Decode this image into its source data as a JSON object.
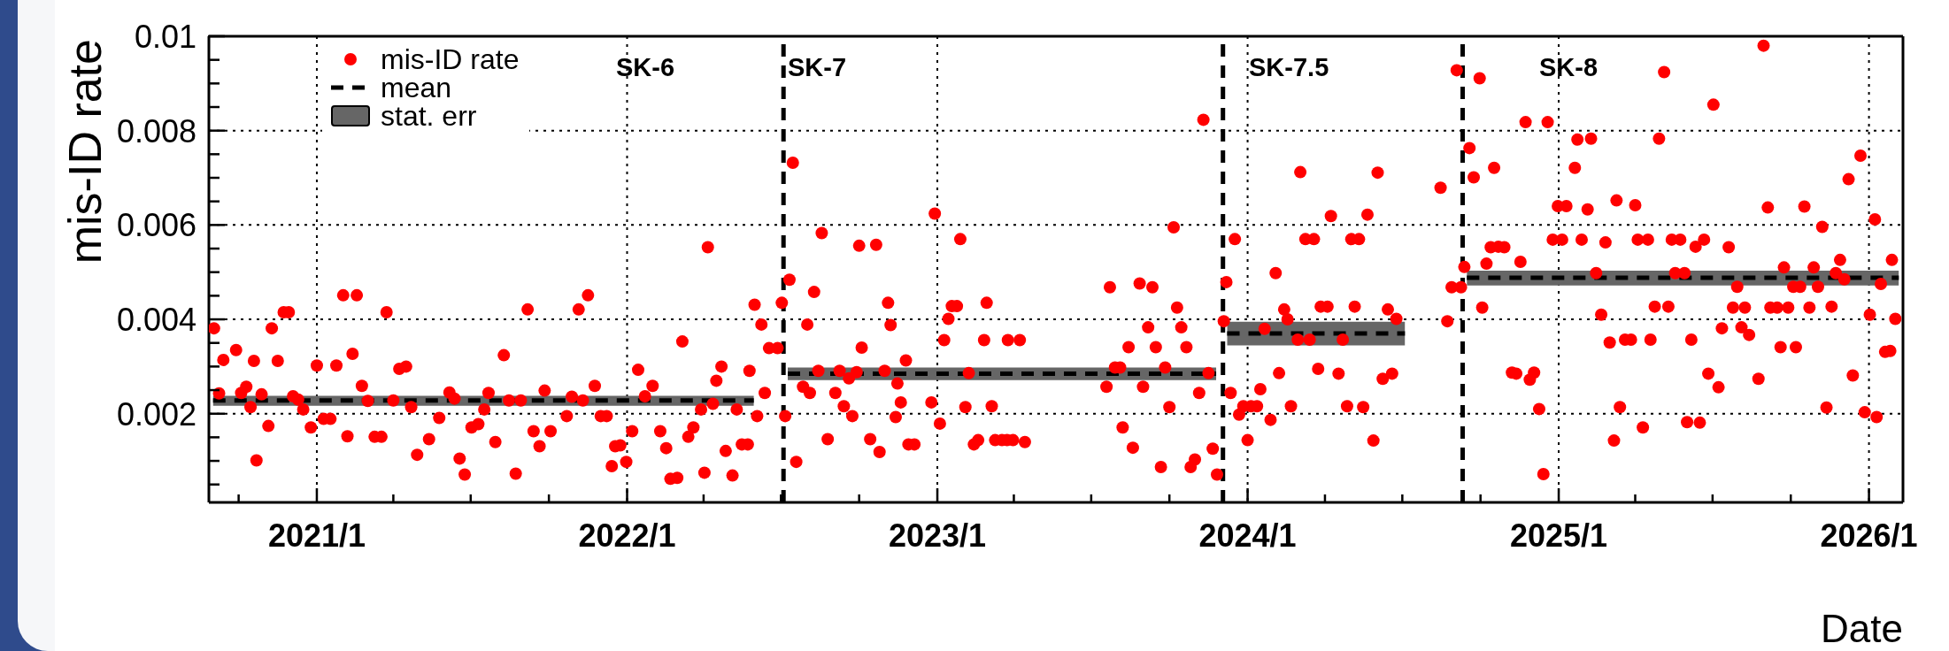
{
  "chart_data": {
    "type": "scatter",
    "xlabel": "Date",
    "ylabel": "mis-ID rate",
    "xlim": [
      "2020-08-27",
      "2026-02-10"
    ],
    "xticks": [
      {
        "value": "2020-10-01",
        "label": null
      },
      {
        "value": "2021-01-01",
        "label": "2021/1"
      },
      {
        "value": "2021-04-01",
        "label": null
      },
      {
        "value": "2021-07-01",
        "label": null
      },
      {
        "value": "2021-10-01",
        "label": null
      },
      {
        "value": "2022-01-01",
        "label": "2022/1"
      },
      {
        "value": "2022-04-01",
        "label": null
      },
      {
        "value": "2022-07-01",
        "label": null
      },
      {
        "value": "2022-10-01",
        "label": null
      },
      {
        "value": "2023-01-01",
        "label": "2023/1"
      },
      {
        "value": "2023-04-01",
        "label": null
      },
      {
        "value": "2023-07-01",
        "label": null
      },
      {
        "value": "2023-10-01",
        "label": null
      },
      {
        "value": "2024-01-01",
        "label": "2024/1"
      },
      {
        "value": "2024-04-01",
        "label": null
      },
      {
        "value": "2024-07-01",
        "label": null
      },
      {
        "value": "2024-10-01",
        "label": null
      },
      {
        "value": "2025-01-01",
        "label": "2025/1"
      },
      {
        "value": "2025-04-01",
        "label": null
      },
      {
        "value": "2025-07-01",
        "label": null
      },
      {
        "value": "2025-10-01",
        "label": null
      },
      {
        "value": "2026-01-01",
        "label": "2026/1"
      }
    ],
    "ylim": [
      0.00012,
      0.01
    ],
    "yticks": [
      {
        "value": 0.0005,
        "label": null
      },
      {
        "value": 0.001,
        "label": null
      },
      {
        "value": 0.0015,
        "label": null
      },
      0.002,
      {
        "value": 0.0025,
        "label": null
      },
      {
        "value": 0.003,
        "label": null
      },
      {
        "value": 0.0035,
        "label": null
      },
      0.004,
      {
        "value": 0.0045,
        "label": null
      },
      {
        "value": 0.005,
        "label": null
      },
      {
        "value": 0.0055,
        "label": null
      },
      0.006,
      {
        "value": 0.0065,
        "label": null
      },
      {
        "value": 0.007,
        "label": null
      },
      {
        "value": 0.0075,
        "label": null
      },
      0.008,
      {
        "value": 0.0085,
        "label": null
      },
      {
        "value": 0.009,
        "label": null
      },
      {
        "value": 0.0095,
        "label": null
      },
      0.01
    ],
    "grid": true,
    "legend": "top left",
    "series": [
      {
        "name": "mis-ID rate",
        "color": "#ff0000",
        "marker": "circle",
        "x": [
          "2020-09-02",
          "2020-09-08",
          "2020-09-13",
          "2020-09-28",
          "2020-10-04",
          "2020-10-10",
          "2020-10-15",
          "2020-10-19",
          "2020-10-22",
          "2020-10-28",
          "2020-11-05",
          "2020-11-09",
          "2020-11-16",
          "2020-11-23",
          "2020-11-29",
          "2020-12-04",
          "2020-12-10",
          "2020-12-16",
          "2020-12-25",
          "2021-01-01",
          "2021-01-09",
          "2021-01-17",
          "2021-01-24",
          "2021-02-01",
          "2021-02-06",
          "2021-02-12",
          "2021-02-17",
          "2021-02-23",
          "2021-03-02",
          "2021-03-10",
          "2021-03-18",
          "2021-03-24",
          "2021-04-01",
          "2021-04-08",
          "2021-04-16",
          "2021-04-22",
          "2021-04-29",
          "2021-05-13",
          "2021-05-25",
          "2021-06-06",
          "2021-06-12",
          "2021-06-18",
          "2021-06-24",
          "2021-07-02",
          "2021-07-10",
          "2021-07-17",
          "2021-07-22",
          "2021-07-30",
          "2021-08-09",
          "2021-08-15",
          "2021-08-23",
          "2021-08-29",
          "2021-09-06",
          "2021-09-13",
          "2021-09-20",
          "2021-09-26",
          "2021-10-03",
          "2021-10-22",
          "2021-10-28",
          "2021-11-05",
          "2021-11-10",
          "2021-11-16",
          "2021-11-24",
          "2021-12-01",
          "2021-12-08",
          "2021-12-14",
          "2021-12-18",
          "2021-12-24",
          "2021-12-31",
          "2022-01-07",
          "2022-01-14",
          "2022-01-22",
          "2022-01-31",
          "2022-02-09",
          "2022-02-16",
          "2022-02-21",
          "2022-03-01",
          "2022-03-07",
          "2022-03-14",
          "2022-03-20",
          "2022-03-29",
          "2022-04-02",
          "2022-04-06",
          "2022-04-12",
          "2022-04-16",
          "2022-04-22",
          "2022-04-27",
          "2022-05-05",
          "2022-05-10",
          "2022-05-16",
          "2022-05-23",
          "2022-05-25",
          "2022-05-31",
          "2022-06-03",
          "2022-06-08",
          "2022-06-12",
          "2022-06-17",
          "2022-06-27",
          "2022-07-02",
          "2022-07-06",
          "2022-07-11",
          "2022-07-15",
          "2022-07-19",
          "2022-07-27",
          "2022-08-01",
          "2022-08-04",
          "2022-08-09",
          "2022-08-14",
          "2022-08-18",
          "2022-08-25",
          "2022-09-03",
          "2022-09-08",
          "2022-09-13",
          "2022-09-19",
          "2022-09-23",
          "2022-09-28",
          "2022-10-01",
          "2022-10-04",
          "2022-10-14",
          "2022-10-21",
          "2022-10-25",
          "2022-10-31",
          "2022-11-04",
          "2022-11-07",
          "2022-11-13",
          "2022-11-15",
          "2022-11-19",
          "2022-11-25",
          "2022-11-28",
          "2022-12-05",
          "2022-12-25",
          "2022-12-29",
          "2023-01-04",
          "2023-01-09",
          "2023-01-14",
          "2023-01-18",
          "2023-01-24",
          "2023-01-28",
          "2023-02-03",
          "2023-02-07",
          "2023-02-13",
          "2023-02-18",
          "2023-02-25",
          "2023-02-28",
          "2023-03-06",
          "2023-03-10",
          "2023-03-18",
          "2023-03-24",
          "2023-03-25",
          "2023-03-31",
          "2023-04-08",
          "2023-04-14",
          "2023-07-19",
          "2023-07-23",
          "2023-07-29",
          "2023-08-04",
          "2023-08-07",
          "2023-08-14",
          "2023-08-19",
          "2023-08-27",
          "2023-08-31",
          "2023-09-06",
          "2023-09-11",
          "2023-09-15",
          "2023-09-21",
          "2023-09-26",
          "2023-10-01",
          "2023-10-06",
          "2023-10-10",
          "2023-10-15",
          "2023-10-21",
          "2023-10-26",
          "2023-10-31",
          "2023-11-05",
          "2023-11-10",
          "2023-11-16",
          "2023-11-21",
          "2023-11-26",
          "2023-12-04",
          "2023-12-07",
          "2023-12-12",
          "2023-12-17",
          "2023-12-22",
          "2023-12-27",
          "2024-01-01",
          "2024-01-05",
          "2024-01-12",
          "2024-01-16",
          "2024-01-21",
          "2024-01-28",
          "2024-02-03",
          "2024-02-07",
          "2024-02-13",
          "2024-02-17",
          "2024-02-21",
          "2024-02-29",
          "2024-03-03",
          "2024-03-09",
          "2024-03-14",
          "2024-03-19",
          "2024-03-24",
          "2024-03-27",
          "2024-04-04",
          "2024-04-08",
          "2024-04-17",
          "2024-04-22",
          "2024-04-27",
          "2024-05-02",
          "2024-05-06",
          "2024-05-11",
          "2024-05-16",
          "2024-05-21",
          "2024-05-28",
          "2024-06-02",
          "2024-06-08",
          "2024-06-14",
          "2024-06-19",
          "2024-06-24",
          "2024-08-15",
          "2024-08-23",
          "2024-08-28",
          "2024-09-03",
          "2024-09-08",
          "2024-09-12",
          "2024-09-18",
          "2024-09-23",
          "2024-09-30",
          "2024-10-03",
          "2024-10-08",
          "2024-10-13",
          "2024-10-17",
          "2024-10-22",
          "2024-10-29",
          "2024-11-07",
          "2024-11-12",
          "2024-11-17",
          "2024-11-23",
          "2024-11-28",
          "2024-12-03",
          "2024-12-09",
          "2024-12-14",
          "2024-12-19",
          "2024-12-25",
          "2024-12-31",
          "2025-01-05",
          "2025-01-10",
          "2025-01-20",
          "2025-01-23",
          "2025-01-28",
          "2025-02-04",
          "2025-02-08",
          "2025-02-14",
          "2025-02-20",
          "2025-02-25",
          "2025-03-02",
          "2025-03-07",
          "2025-03-10",
          "2025-03-14",
          "2025-03-20",
          "2025-03-27",
          "2025-04-01",
          "2025-04-04",
          "2025-04-10",
          "2025-04-16",
          "2025-04-19",
          "2025-04-24",
          "2025-04-29",
          "2025-05-05",
          "2025-05-10",
          "2025-05-14",
          "2025-05-18",
          "2025-05-24",
          "2025-05-29",
          "2025-06-01",
          "2025-06-06",
          "2025-06-11",
          "2025-06-16",
          "2025-06-21",
          "2025-06-26",
          "2025-07-02",
          "2025-07-08",
          "2025-07-12",
          "2025-07-20",
          "2025-07-25",
          "2025-07-30",
          "2025-08-04",
          "2025-08-08",
          "2025-08-13",
          "2025-08-24",
          "2025-08-30",
          "2025-09-04",
          "2025-09-07",
          "2025-09-15",
          "2025-09-19",
          "2025-09-23",
          "2025-09-28",
          "2025-10-04",
          "2025-10-07",
          "2025-10-12",
          "2025-10-17",
          "2025-10-23",
          "2025-10-28",
          "2025-11-02",
          "2025-11-07",
          "2025-11-12",
          "2025-11-18",
          "2025-11-23",
          "2025-11-28",
          "2025-12-03",
          "2025-12-08",
          "2025-12-13",
          "2025-12-22",
          "2025-12-27",
          "2026-01-02",
          "2026-01-08",
          "2026-01-10",
          "2026-01-15",
          "2026-01-20",
          "2026-01-26",
          "2026-01-28",
          "2026-02-01"
        ],
        "values": [
          0.00381,
          0.00243,
          0.00314,
          0.00335,
          0.00244,
          0.00257,
          0.00214,
          0.00312,
          0.00101,
          0.00241,
          0.00174,
          0.00381,
          0.00312,
          0.00415,
          0.00415,
          0.00237,
          0.0023,
          0.00209,
          0.00171,
          0.00302,
          0.00189,
          0.00189,
          0.00302,
          0.00451,
          0.00152,
          0.00327,
          0.00451,
          0.00259,
          0.00227,
          0.00151,
          0.00151,
          0.00415,
          0.00228,
          0.00295,
          0.003,
          0.00214,
          0.00113,
          0.00146,
          0.00191,
          0.00245,
          0.00232,
          0.00105,
          0.00071,
          0.00171,
          0.00178,
          0.00209,
          0.00244,
          0.0014,
          0.00324,
          0.00228,
          0.00073,
          0.00228,
          0.00421,
          0.00163,
          0.00131,
          0.00249,
          0.00163,
          0.00195,
          0.00236,
          0.00421,
          0.00228,
          0.00451,
          0.00259,
          0.00195,
          0.00195,
          0.00089,
          0.00131,
          0.00133,
          0.00098,
          0.00163,
          0.00293,
          0.00237,
          0.00259,
          0.00163,
          0.00127,
          0.00062,
          0.00064,
          0.00353,
          0.00151,
          0.00171,
          0.00209,
          0.00075,
          0.00553,
          0.00221,
          0.0027,
          0.003,
          0.00121,
          0.00069,
          0.00209,
          0.00135,
          0.00135,
          0.00291,
          0.00431,
          0.00195,
          0.00389,
          0.00244,
          0.00339,
          0.00339,
          0.00435,
          0.00195,
          0.00484,
          0.00732,
          0.00098,
          0.00257,
          0.00389,
          0.00244,
          0.00458,
          0.00291,
          0.00583,
          0.00146,
          0.00244,
          0.00291,
          0.00216,
          0.00275,
          0.00195,
          0.00288,
          0.00556,
          0.0034,
          0.00146,
          0.00558,
          0.00119,
          0.00291,
          0.00435,
          0.00388,
          0.00193,
          0.00264,
          0.00224,
          0.00313,
          0.00135,
          0.00135,
          0.00224,
          0.00624,
          0.00179,
          0.00356,
          0.00401,
          0.00428,
          0.00428,
          0.0057,
          0.00214,
          0.00286,
          0.00135,
          0.00144,
          0.00356,
          0.00435,
          0.00216,
          0.00144,
          0.00144,
          0.00144,
          0.00356,
          0.00144,
          0.00356,
          0.0014,
          0.00257,
          0.00468,
          0.00298,
          0.00298,
          0.00171,
          0.00341,
          0.00128,
          0.00476,
          0.00257,
          0.00383,
          0.00468,
          0.00341,
          0.00087,
          0.00298,
          0.00214,
          0.00595,
          0.00425,
          0.00383,
          0.00341,
          0.00087,
          0.00103,
          0.00244,
          0.00823,
          0.00286,
          0.00126,
          0.00071,
          0.00396,
          0.00479,
          0.00244,
          0.0057,
          0.00198,
          0.00216,
          0.00144,
          0.00216,
          0.00216,
          0.00252,
          0.0038,
          0.00187,
          0.00498,
          0.00286,
          0.00421,
          0.004,
          0.00216,
          0.00357,
          0.00712,
          0.0057,
          0.00357,
          0.0057,
          0.00295,
          0.00427,
          0.00427,
          0.00619,
          0.00285,
          0.00357,
          0.00216,
          0.0057,
          0.00427,
          0.0057,
          0.00214,
          0.00622,
          0.00143,
          0.00711,
          0.00274,
          0.00421,
          0.00285,
          0.00401,
          0.00679,
          0.00396,
          0.00468,
          0.00928,
          0.00468,
          0.00511,
          0.00763,
          0.00701,
          0.00911,
          0.00425,
          0.00518,
          0.00553,
          0.00721,
          0.00554,
          0.00553,
          0.00287,
          0.00285,
          0.00522,
          0.00818,
          0.00272,
          0.00287,
          0.0021,
          0.00072,
          0.00818,
          0.00569,
          0.0064,
          0.00569,
          0.0064,
          0.00721,
          0.00781,
          0.00569,
          0.00633,
          0.00783,
          0.00498,
          0.0041,
          0.00563,
          0.00351,
          0.00143,
          0.00652,
          0.00214,
          0.00357,
          0.00357,
          0.00642,
          0.00569,
          0.00171,
          0.00569,
          0.00357,
          0.00427,
          0.00783,
          0.00924,
          0.00427,
          0.00569,
          0.00498,
          0.00569,
          0.00498,
          0.00182,
          0.00357,
          0.00554,
          0.00181,
          0.00569,
          0.00285,
          0.00855,
          0.00256,
          0.00381,
          0.00553,
          0.00425,
          0.00469,
          0.00383,
          0.00425,
          0.00367,
          0.00274,
          0.0098,
          0.00637,
          0.00425,
          0.00425,
          0.00341,
          0.0051,
          0.00425,
          0.00469,
          0.00341,
          0.00469,
          0.00639,
          0.00425,
          0.0051,
          0.00469,
          0.00596,
          0.00213,
          0.00427,
          0.00498,
          0.00526,
          0.00485,
          0.00697,
          0.00281,
          0.00747,
          0.00203,
          0.0041,
          0.00612,
          0.00193,
          0.00475,
          0.00331,
          0.00333,
          0.00526,
          0.00401
        ]
      },
      {
        "name": "mean",
        "type": "line",
        "color": "#000000",
        "line_style": "dashed",
        "x": [
          "2020-09-01",
          "2022-05-30",
          "2022-06-15",
          "2022-07-09",
          "2023-11-25",
          "2023-12-01",
          "2023-12-08",
          "2024-07-04",
          "2024-08-01",
          "2024-09-15",
          "2026-02-05"
        ],
        "values": [
          0.00228,
          0.00228,
          null,
          0.00285,
          0.00285,
          null,
          0.0037,
          0.0037,
          null,
          0.00488,
          0.00488
        ]
      },
      {
        "name": "stat. err",
        "type": "line",
        "color": "#666666",
        "x": [
          "2020-09-01",
          "2022-05-30",
          "2022-06-15",
          "2022-07-09",
          "2023-11-25",
          "2023-12-01",
          "2023-12-08",
          "2024-07-04",
          "2024-08-01",
          "2024-09-15",
          "2026-02-05"
        ],
        "values": [
          0.00228,
          0.00228,
          null,
          0.00285,
          0.00285,
          null,
          0.0037,
          0.0037,
          null,
          0.00488,
          0.00488
        ],
        "lower": [
          0.00217,
          0.00217,
          null,
          0.00271,
          0.00271,
          null,
          0.00345,
          0.00345,
          null,
          0.00472,
          0.00472
        ],
        "upper": [
          0.00238,
          0.00238,
          null,
          0.00298,
          0.00298,
          null,
          0.00395,
          0.00395,
          null,
          0.00503,
          0.00503
        ]
      }
    ],
    "ref_lines": [
      {
        "axis": "x",
        "value": "2022-07-04",
        "color": "#000000",
        "line_style": "dashed"
      },
      {
        "axis": "x",
        "value": "2023-12-03",
        "color": "#000000",
        "line_style": "dashed"
      },
      {
        "axis": "x",
        "value": "2024-09-10",
        "color": "#000000",
        "line_style": "dashed"
      }
    ],
    "annotations": [
      "SK-6",
      "SK-7",
      "SK-7.5",
      "SK-8"
    ]
  }
}
